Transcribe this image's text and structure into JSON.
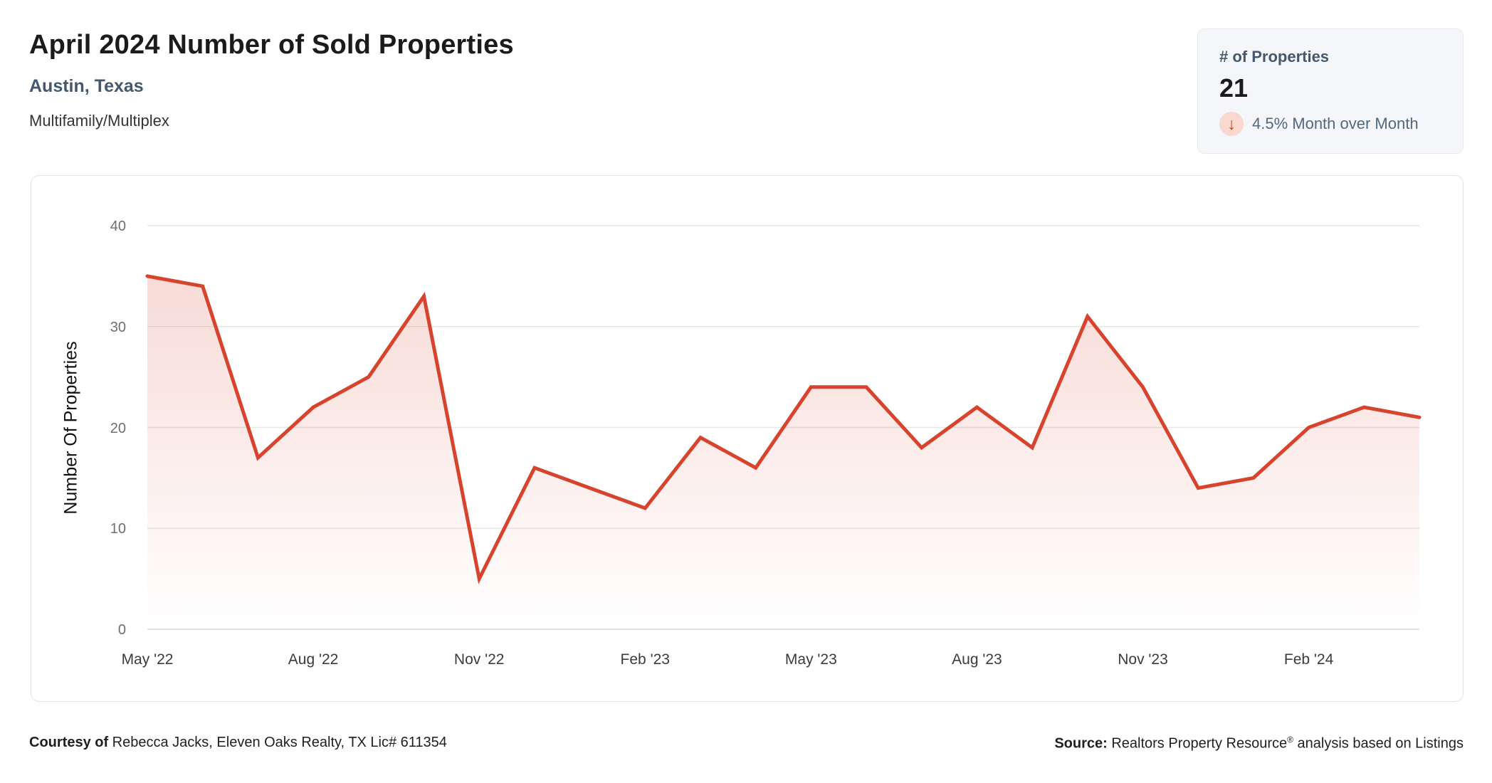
{
  "header": {
    "title": "April 2024 Number of Sold Properties",
    "location": "Austin, Texas",
    "property_type": "Multifamily/Multiplex"
  },
  "stat_card": {
    "label": "# of Properties",
    "value": "21",
    "change_direction": "down",
    "arrow_glyph": "↓",
    "change_text": "4.5% Month over Month"
  },
  "chart_data": {
    "type": "area",
    "title": "April 2024 Number of Sold Properties",
    "x": [
      "May '22",
      "Jun '22",
      "Jul '22",
      "Aug '22",
      "Sep '22",
      "Oct '22",
      "Nov '22",
      "Dec '22",
      "Jan '23",
      "Feb '23",
      "Mar '23",
      "Apr '23",
      "May '23",
      "Jun '23",
      "Jul '23",
      "Aug '23",
      "Sep '23",
      "Oct '23",
      "Nov '23",
      "Dec '23",
      "Jan '24",
      "Feb '24",
      "Mar '24",
      "Apr '24"
    ],
    "values": [
      35,
      34,
      17,
      22,
      25,
      33,
      5,
      16,
      14,
      12,
      19,
      16,
      24,
      24,
      18,
      22,
      18,
      31,
      24,
      14,
      15,
      20,
      22,
      21
    ],
    "xtick_labels": [
      "May '22",
      "Aug '22",
      "Nov '22",
      "Feb '23",
      "May '23",
      "Aug '23",
      "Nov '23",
      "Feb '24"
    ],
    "xtick_indices": [
      0,
      3,
      6,
      9,
      12,
      15,
      18,
      21
    ],
    "ylabel": "Number Of Properties",
    "xlabel": "",
    "yticks": [
      0,
      10,
      20,
      30,
      40
    ],
    "ylim": [
      0,
      40
    ],
    "grid": true,
    "legend": "none",
    "line_color": "#d8432e",
    "fill_top_color": "rgba(216,67,46,0.22)",
    "fill_bottom_color": "rgba(216,67,46,0)",
    "grid_color": "#e7e7e7",
    "baseline_color": "#d9d9d9"
  },
  "footer": {
    "courtesy_label": "Courtesy of",
    "courtesy_text": " Rebecca Jacks, Eleven Oaks Realty, TX Lic# 611354",
    "source_label": "Source:",
    "source_text_pre": " Realtors Property Resource",
    "source_reg_mark": "®",
    "source_text_post": " analysis based on Listings"
  }
}
